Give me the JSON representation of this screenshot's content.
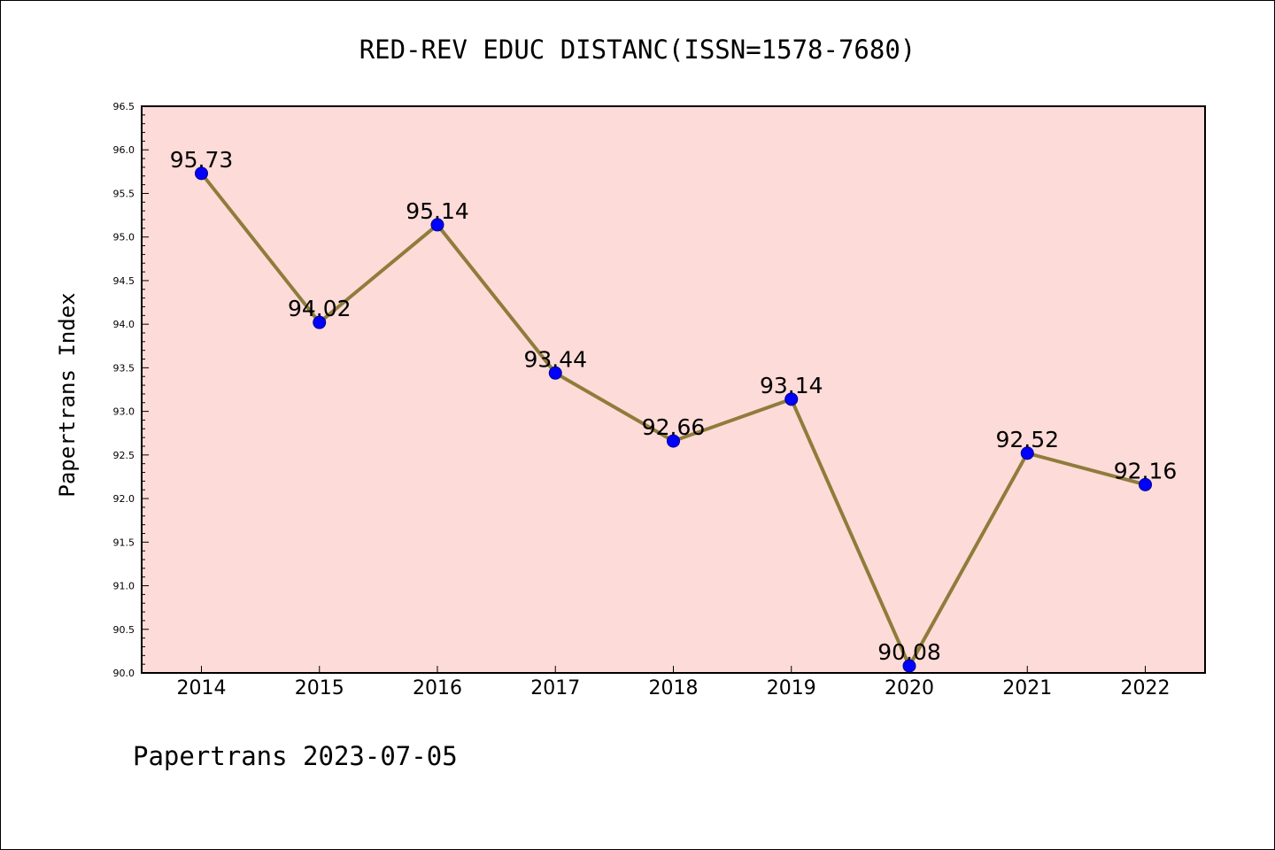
{
  "chart_data": {
    "type": "line",
    "title": "RED-REV EDUC DISTANC(ISSN=1578-7680)",
    "ylabel": "Papertrans Index",
    "xlabel": "",
    "footer": "Papertrans 2023-07-05",
    "categories": [
      "2014",
      "2015",
      "2016",
      "2017",
      "2018",
      "2019",
      "2020",
      "2021",
      "2022"
    ],
    "values": [
      95.73,
      94.02,
      95.14,
      93.44,
      92.66,
      93.14,
      90.08,
      92.52,
      92.16
    ],
    "data_labels": [
      "95.73",
      "94.02",
      "95.14",
      "93.44",
      "92.66",
      "93.14",
      "90.08",
      "92.52",
      "92.16"
    ],
    "ylim": [
      90.0,
      96.5
    ],
    "yticks": [
      "90.0",
      "90.5",
      "91.0",
      "91.5",
      "92.0",
      "92.5",
      "93.0",
      "93.5",
      "94.0",
      "94.5",
      "95.0",
      "95.5",
      "96.0",
      "96.5"
    ],
    "grid": false,
    "colors": {
      "plot_background": "#fddbd8",
      "line": "#8f7c3b",
      "marker": "#0000ff",
      "marker_edge": "#00008b"
    }
  }
}
